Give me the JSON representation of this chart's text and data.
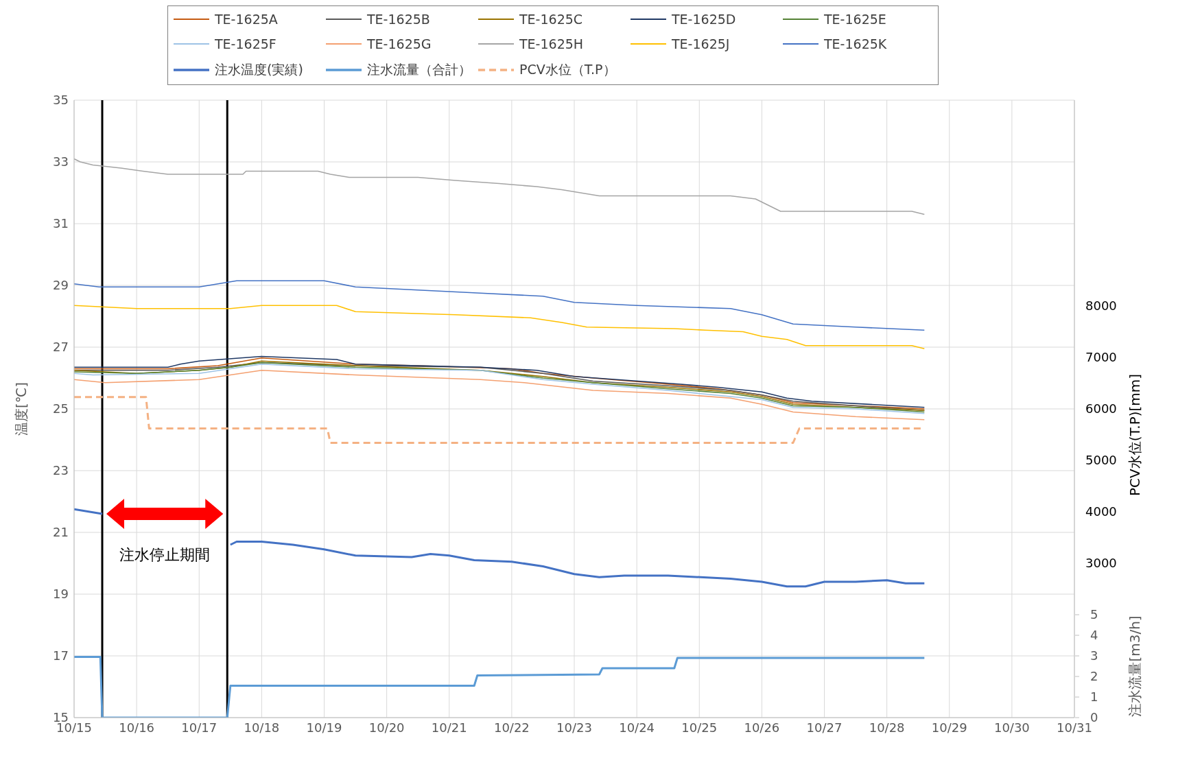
{
  "chart_data": {
    "type": "line",
    "ylabel": "温度[℃]",
    "y2label": "PCV水位(T.P)[mm]",
    "y3label": "注水流量[m3/h]",
    "xlim": [
      "--10-15",
      "--10-31"
    ],
    "xticks": [
      {
        "value": "--10-15",
        "label": "10/15"
      },
      {
        "value": "--10-16",
        "label": "10/16"
      },
      {
        "value": "--10-17",
        "label": "10/17"
      },
      {
        "value": "--10-18",
        "label": "10/18"
      },
      {
        "value": "--10-19",
        "label": "10/19"
      },
      {
        "value": "--10-20",
        "label": "10/20"
      },
      {
        "value": "--10-21",
        "label": "10/21"
      },
      {
        "value": "--10-22",
        "label": "10/22"
      },
      {
        "value": "--10-23",
        "label": "10/23"
      },
      {
        "value": "--10-24",
        "label": "10/24"
      },
      {
        "value": "--10-25",
        "label": "10/25"
      },
      {
        "value": "--10-26",
        "label": "10/26"
      },
      {
        "value": "--10-27",
        "label": "10/27"
      },
      {
        "value": "--10-28",
        "label": "10/28"
      },
      {
        "value": "--10-29",
        "label": "10/29"
      },
      {
        "value": "--10-30",
        "label": "10/30"
      },
      {
        "value": "--10-31",
        "label": "10/31"
      }
    ],
    "ylim": [
      15,
      35
    ],
    "yticks": [
      15,
      17,
      19,
      21,
      23,
      25,
      27,
      29,
      31,
      33,
      35
    ],
    "y2lim": [
      0,
      12000
    ],
    "y2ticks": [
      3000,
      4000,
      5000,
      6000,
      7000,
      8000
    ],
    "y3lim": [
      0,
      30
    ],
    "y3ticks": [
      0,
      1,
      2,
      3,
      4,
      5
    ],
    "grid": true,
    "legend": "top",
    "marker": "none",
    "series": [
      {
        "name": "TE-1625A",
        "color": "#c55a11",
        "x": [
          "--10-15T00:00",
          "--10-16T12:00",
          "--10-17T07:12",
          "--10-18T00:00",
          "--10-19T12:00",
          "--10-20T12:00",
          "--10-22T00:00",
          "--10-22T12:00",
          "--10-23T07:12",
          "--10-24T12:00",
          "--10-25T07:12",
          "--10-26T00:00",
          "--10-26T12:00",
          "--10-27T00:00",
          "--10-28T14:24"
        ],
        "values": [
          26.3,
          26.3,
          26.4,
          26.65,
          26.45,
          26.4,
          26.3,
          26.15,
          26.0,
          25.8,
          25.65,
          25.45,
          25.2,
          25.15,
          25.0
        ]
      },
      {
        "name": "TE-1625B",
        "color": "#595959",
        "x": [
          "--10-15T00:00",
          "--10-16T12:00",
          "--10-17T07:12",
          "--10-18T00:00",
          "--10-19T12:00",
          "--10-21T12:00",
          "--10-22T12:00",
          "--10-23T07:12",
          "--10-24T12:00",
          "--10-25T12:00",
          "--10-26T00:00",
          "--10-26T12:00",
          "--10-27T12:00",
          "--10-28T14:24"
        ],
        "values": [
          26.25,
          26.25,
          26.35,
          26.5,
          26.4,
          26.35,
          26.15,
          25.9,
          25.75,
          25.6,
          25.45,
          25.25,
          25.1,
          24.95
        ]
      },
      {
        "name": "TE-1625C",
        "color": "#997300",
        "x": [
          "--10-15T00:00",
          "--10-16T00:00",
          "--10-17T00:00",
          "--10-17T12:00",
          "--10-18T00:00",
          "--10-19T12:00",
          "--10-21T12:00",
          "--10-22T12:00",
          "--10-23T07:12",
          "--10-24T12:00",
          "--10-25T12:00",
          "--10-26T00:00",
          "--10-26T12:00",
          "--10-27T12:00",
          "--10-28T14:24"
        ],
        "values": [
          26.25,
          26.15,
          26.25,
          26.35,
          26.55,
          26.4,
          26.25,
          26.05,
          25.85,
          25.7,
          25.55,
          25.4,
          25.15,
          25.05,
          24.95
        ]
      },
      {
        "name": "TE-1625D",
        "color": "#1f3864",
        "x": [
          "--10-15T00:00",
          "--10-16T12:00",
          "--10-16T16:48",
          "--10-17T00:00",
          "--10-18T00:00",
          "--10-19T04:48",
          "--10-19T12:00",
          "--10-21T12:00",
          "--10-22T09:36",
          "--10-23T00:00",
          "--10-24T16:48",
          "--10-25T07:12",
          "--10-26T00:00",
          "--10-26T09:36",
          "--10-26T19:12",
          "--10-28T14:24"
        ],
        "values": [
          26.35,
          26.35,
          26.45,
          26.55,
          26.7,
          26.6,
          26.45,
          26.35,
          26.25,
          26.05,
          25.8,
          25.7,
          25.55,
          25.35,
          25.25,
          25.05
        ]
      },
      {
        "name": "TE-1625E",
        "color": "#548235",
        "x": [
          "--10-15T00:00",
          "--10-16T00:00",
          "--10-17T00:00",
          "--10-17T12:00",
          "--10-18T00:00",
          "--10-19T12:00",
          "--10-21T12:00",
          "--10-22T12:00",
          "--10-23T07:12",
          "--10-24T12:00",
          "--10-25T12:00",
          "--10-26T00:00",
          "--10-26T12:00",
          "--10-27T12:00",
          "--10-28T14:24"
        ],
        "values": [
          26.2,
          26.15,
          26.25,
          26.35,
          26.5,
          26.35,
          26.25,
          26.0,
          25.85,
          25.65,
          25.5,
          25.35,
          25.1,
          25.05,
          24.9
        ]
      },
      {
        "name": "TE-1625F",
        "color": "#9dc3e6",
        "x": [
          "--10-15T00:00",
          "--10-15T07:12",
          "--10-17T00:00",
          "--10-17T12:00",
          "--10-18T00:00",
          "--10-19T12:00",
          "--10-21T12:00",
          "--10-22T12:00",
          "--10-23T07:12",
          "--10-24T12:00",
          "--10-25T12:00",
          "--10-26T00:00",
          "--10-26T12:00",
          "--10-27T12:00",
          "--10-28T14:24"
        ],
        "values": [
          26.15,
          26.1,
          26.15,
          26.3,
          26.45,
          26.3,
          26.25,
          25.95,
          25.8,
          25.6,
          25.4,
          25.3,
          25.05,
          25.0,
          24.85
        ]
      },
      {
        "name": "TE-1625G",
        "color": "#f4a070",
        "x": [
          "--10-15T00:00",
          "--10-15T12:00",
          "--10-17T00:00",
          "--10-17T12:00",
          "--10-18T00:00",
          "--10-19T12:00",
          "--10-21T12:00",
          "--10-22T04:48",
          "--10-23T07:12",
          "--10-24T12:00",
          "--10-25T12:00",
          "--10-26T00:00",
          "--10-26T12:00",
          "--10-27T12:00",
          "--10-28T14:24"
        ],
        "values": [
          25.95,
          25.85,
          25.95,
          26.1,
          26.25,
          26.1,
          25.95,
          25.85,
          25.6,
          25.5,
          25.35,
          25.15,
          24.9,
          24.75,
          24.65
        ]
      },
      {
        "name": "TE-1625H",
        "color": "#a5a5a5",
        "x": [
          "--10-15T00:00",
          "--10-15T02:24",
          "--10-15T07:12",
          "--10-15T18:00",
          "--10-16T02:24",
          "--10-16T12:00",
          "--10-17T16:48",
          "--10-17T18:00",
          "--10-18T21:36",
          "--10-19T02:24",
          "--10-19T09:36",
          "--10-20T12:00",
          "--10-21T02:24",
          "--10-21T19:12",
          "--10-22T09:36",
          "--10-22T19:12",
          "--10-23T02:24",
          "--10-23T09:36",
          "--10-25T12:00",
          "--10-25T21:36",
          "--10-26T02:24",
          "--10-26T07:12",
          "--10-28T09:36",
          "--10-28T14:24"
        ],
        "values": [
          33.1,
          33.0,
          32.9,
          32.8,
          32.7,
          32.6,
          32.6,
          32.7,
          32.7,
          32.6,
          32.5,
          32.5,
          32.4,
          32.3,
          32.2,
          32.1,
          32.0,
          31.9,
          31.9,
          31.8,
          31.6,
          31.4,
          31.4,
          31.3
        ]
      },
      {
        "name": "TE-1625J",
        "color": "#ffc000",
        "x": [
          "--10-15T00:00",
          "--10-16T00:00",
          "--10-17T12:00",
          "--10-18T00:00",
          "--10-19T04:48",
          "--10-19T12:00",
          "--10-21T02:24",
          "--10-22T07:12",
          "--10-22T19:12",
          "--10-23T04:48",
          "--10-24T14:24",
          "--10-25T02:24",
          "--10-25T16:48",
          "--10-26T00:00",
          "--10-26T09:36",
          "--10-26T16:48",
          "--10-28T09:36",
          "--10-28T14:24"
        ],
        "values": [
          28.35,
          28.25,
          28.25,
          28.35,
          28.35,
          28.15,
          28.05,
          27.95,
          27.8,
          27.65,
          27.6,
          27.55,
          27.5,
          27.35,
          27.25,
          27.05,
          27.05,
          26.95
        ]
      },
      {
        "name": "TE-1625K",
        "color": "#4472c4",
        "x": [
          "--10-15T00:00",
          "--10-15T09:36",
          "--10-17T00:00",
          "--10-17T14:24",
          "--10-19T00:00",
          "--10-19T12:00",
          "--10-20T12:00",
          "--10-21T12:00",
          "--10-22T12:00",
          "--10-23T00:00",
          "--10-24T00:00",
          "--10-25T12:00",
          "--10-26T00:00",
          "--10-26T12:00",
          "--10-27T12:00",
          "--10-28T14:24"
        ],
        "values": [
          29.05,
          28.95,
          28.95,
          29.15,
          29.15,
          28.95,
          28.85,
          28.75,
          28.65,
          28.45,
          28.35,
          28.25,
          28.05,
          27.75,
          27.65,
          27.55
        ]
      },
      {
        "name": "注水温度(実績)",
        "color": "#4472c4",
        "x": [
          "--10-15T00:00",
          "--10-15T10:48",
          "--10-15T12:00",
          "--10-17T12:00",
          "--10-17T14:24",
          "--10-18T00:00",
          "--10-18T12:00",
          "--10-19T00:00",
          "--10-19T12:00",
          "--10-20T09:36",
          "--10-20T16:48",
          "--10-21T00:00",
          "--10-21T09:36",
          "--10-22T00:00",
          "--10-22T12:00",
          "--10-23T00:00",
          "--10-23T09:36",
          "--10-23T19:12",
          "--10-24T12:00",
          "--10-25T12:00",
          "--10-26T00:00",
          "--10-26T09:36",
          "--10-26T16:48",
          "--10-27T00:00",
          "--10-27T12:00",
          "--10-28T00:00",
          "--10-28T07:12",
          "--10-28T14:24"
        ],
        "values": [
          21.75,
          21.6,
          null,
          20.6,
          20.7,
          20.7,
          20.6,
          20.45,
          20.25,
          20.2,
          20.3,
          20.25,
          20.1,
          20.05,
          19.9,
          19.65,
          19.55,
          19.6,
          19.6,
          19.5,
          19.4,
          19.25,
          19.25,
          19.4,
          19.4,
          19.45,
          19.35,
          19.35
        ]
      },
      {
        "name": "注水流量（合計）",
        "color": "#5b9bd5",
        "axis": "y3",
        "x": [
          "--10-15T00:00",
          "--10-15T10:05",
          "--10-15T10:48",
          "--10-17T10:48",
          "--10-17T12:00",
          "--10-21T09:36",
          "--10-21T10:48",
          "--10-23T09:36",
          "--10-23T10:48",
          "--10-24T14:24",
          "--10-24T15:36",
          "--10-28T14:24"
        ],
        "values": [
          2.95,
          2.95,
          0,
          0,
          1.55,
          1.55,
          2.05,
          2.1,
          2.4,
          2.4,
          2.9,
          2.9
        ]
      },
      {
        "name": "PCV水位（T.P）",
        "color": "#f4b183",
        "axis": "y2",
        "line_style": "dashed",
        "x": [
          "--10-15T00:00",
          "--10-16T03:36",
          "--10-16T04:48",
          "--10-19T01:12",
          "--10-19T02:24",
          "--10-26T12:00",
          "--10-26T14:24",
          "--10-28T14:24"
        ],
        "values": [
          6230,
          6230,
          5620,
          5620,
          5340,
          5340,
          5620,
          5620
        ]
      }
    ],
    "ref_lines": [
      {
        "axis": "x",
        "value": "--10-15T10:48",
        "label": null,
        "color": "#000000"
      },
      {
        "axis": "x",
        "value": "--10-17T10:48",
        "label": null,
        "color": "#000000"
      }
    ],
    "annotations": [
      "注水停止期間"
    ]
  }
}
